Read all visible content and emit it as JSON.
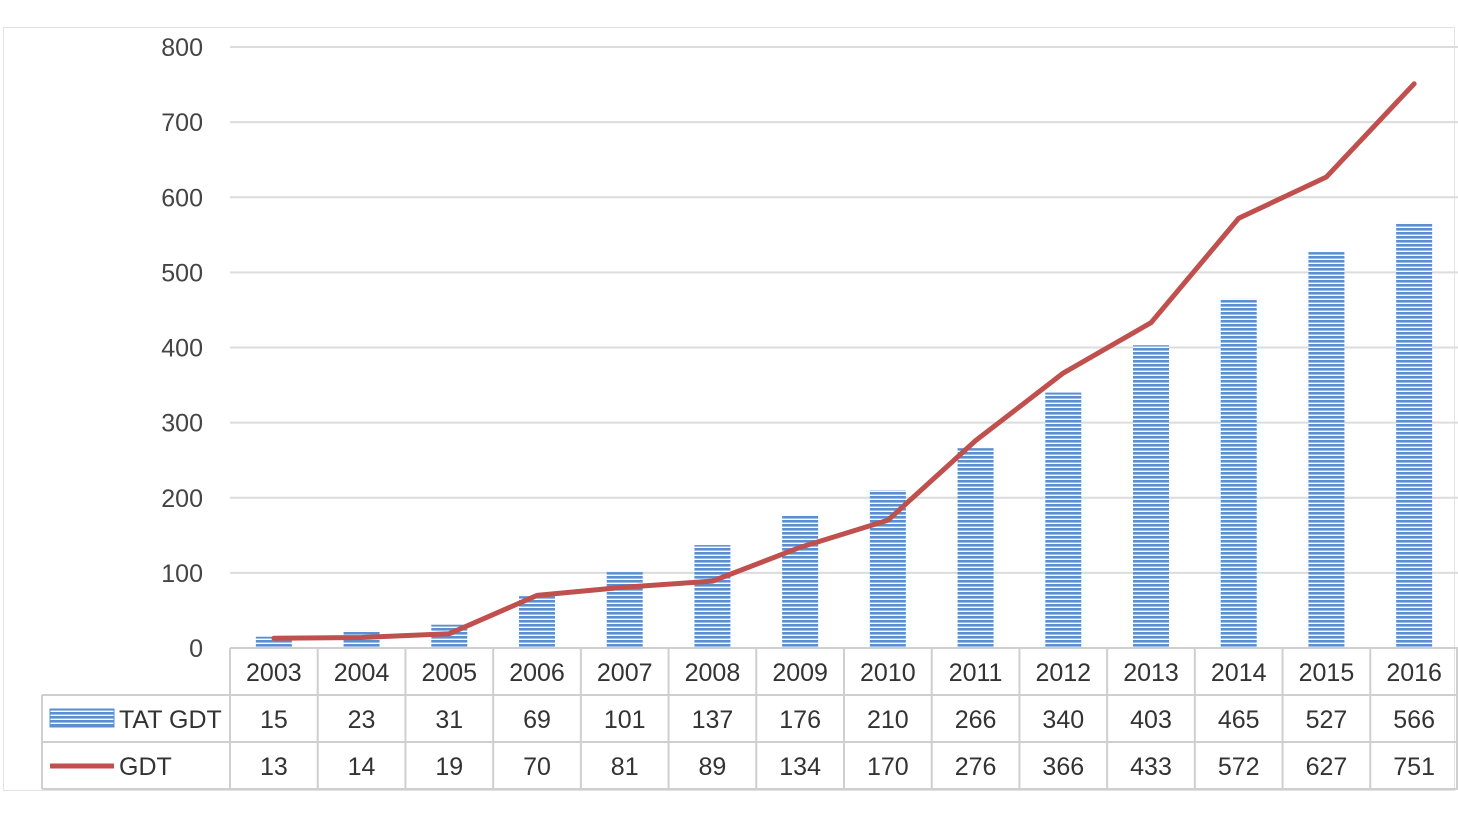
{
  "chart_data": {
    "type": "bar",
    "categories": [
      "2003",
      "2004",
      "2005",
      "2006",
      "2007",
      "2008",
      "2009",
      "2010",
      "2011",
      "2012",
      "2013",
      "2014",
      "2015",
      "2016"
    ],
    "series": [
      {
        "name": "TAT GDT",
        "type": "bar",
        "color": "#5b8fd1",
        "values": [
          15,
          23,
          31,
          69,
          101,
          137,
          176,
          210,
          266,
          340,
          403,
          465,
          527,
          566
        ]
      },
      {
        "name": "GDT",
        "type": "line",
        "color": "#c0504d",
        "values": [
          13,
          14,
          19,
          70,
          81,
          89,
          134,
          170,
          276,
          366,
          433,
          572,
          627,
          751
        ]
      }
    ],
    "y_ticks": [
      "0",
      "100",
      "200",
      "300",
      "400",
      "500",
      "600",
      "700",
      "800"
    ],
    "ylim": [
      0,
      800
    ],
    "grid": true,
    "legend": "data-table"
  }
}
